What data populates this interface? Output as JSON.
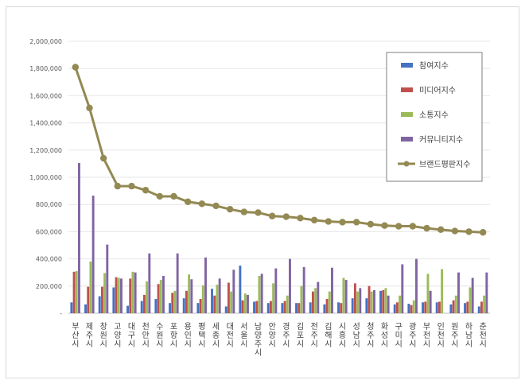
{
  "chart_data": {
    "type": "bar",
    "ylim": [
      0,
      2000000
    ],
    "yticks": [
      {
        "value": 0,
        "label": "-"
      },
      {
        "value": 200000,
        "label": "200,000"
      },
      {
        "value": 400000,
        "label": "400,000"
      },
      {
        "value": 600000,
        "label": "600,000"
      },
      {
        "value": 800000,
        "label": "800,000"
      },
      {
        "value": 1000000,
        "label": "1,000,000"
      },
      {
        "value": 1200000,
        "label": "1,200,000"
      },
      {
        "value": 1400000,
        "label": "1,400,000"
      },
      {
        "value": 1600000,
        "label": "1,600,000"
      },
      {
        "value": 1800000,
        "label": "1,800,000"
      },
      {
        "value": 2000000,
        "label": "2,000,000"
      }
    ],
    "grid": true,
    "legend_position": "right",
    "categories": [
      "부산시",
      "제주시",
      "창원시",
      "고양시",
      "대구시",
      "천안시",
      "수원시",
      "포항시",
      "용인시",
      "평택시",
      "세종시",
      "대전시",
      "서울시",
      "남양주시",
      "안양시",
      "경주시",
      "김포시",
      "전주시",
      "김해시",
      "시흥시",
      "성남시",
      "청주시",
      "화성시",
      "구미시",
      "광주시",
      "부천시",
      "인천시",
      "원주시",
      "하남시",
      "춘천시"
    ],
    "series": [
      {
        "name": "참여지수",
        "type": "bar",
        "color": "#4472c4",
        "values": [
          80000,
          65000,
          125000,
          190000,
          55000,
          90000,
          105000,
          75000,
          110000,
          75000,
          180000,
          50000,
          350000,
          85000,
          75000,
          75000,
          75000,
          80000,
          65000,
          80000,
          110000,
          110000,
          165000,
          65000,
          70000,
          80000,
          80000,
          65000,
          75000,
          50000
        ]
      },
      {
        "name": "미디어지수",
        "type": "bar",
        "color": "#c0504d",
        "values": [
          305000,
          195000,
          195000,
          265000,
          255000,
          135000,
          215000,
          150000,
          165000,
          105000,
          130000,
          225000,
          95000,
          90000,
          90000,
          90000,
          75000,
          160000,
          105000,
          75000,
          220000,
          200000,
          170000,
          80000,
          60000,
          85000,
          85000,
          95000,
          85000,
          85000
        ]
      },
      {
        "name": "소통지수",
        "type": "bar",
        "color": "#9bbb59",
        "values": [
          310000,
          380000,
          295000,
          260000,
          305000,
          235000,
          245000,
          165000,
          285000,
          205000,
          210000,
          160000,
          145000,
          275000,
          220000,
          130000,
          200000,
          185000,
          160000,
          260000,
          160000,
          160000,
          185000,
          130000,
          95000,
          290000,
          325000,
          130000,
          190000,
          130000
        ]
      },
      {
        "name": "커뮤니티지수",
        "type": "bar",
        "color": "#8064a2",
        "values": [
          1105000,
          865000,
          505000,
          255000,
          300000,
          440000,
          275000,
          440000,
          250000,
          410000,
          255000,
          320000,
          135000,
          290000,
          330000,
          400000,
          340000,
          230000,
          335000,
          245000,
          185000,
          170000,
          130000,
          360000,
          400000,
          165000,
          0,
          300000,
          260000,
          300000
        ]
      },
      {
        "name": "브랜드평판지수",
        "type": "line",
        "color": "#938953",
        "values": [
          1810000,
          1510000,
          1140000,
          935000,
          935000,
          905000,
          860000,
          860000,
          820000,
          805000,
          790000,
          765000,
          745000,
          740000,
          715000,
          710000,
          700000,
          685000,
          675000,
          670000,
          670000,
          655000,
          645000,
          640000,
          640000,
          625000,
          615000,
          605000,
          600000,
          595000
        ]
      }
    ]
  }
}
